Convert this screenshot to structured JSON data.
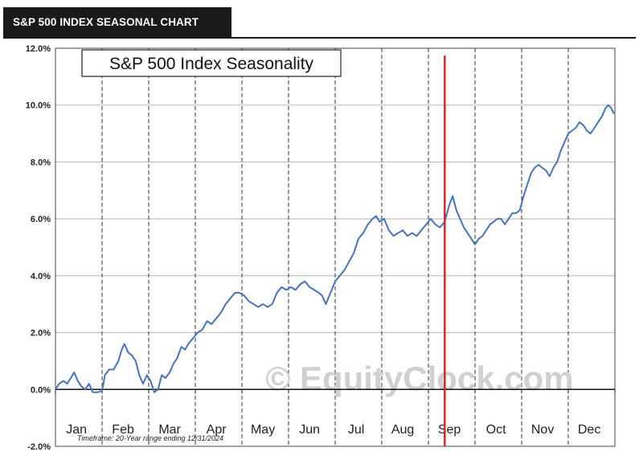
{
  "header": {
    "title": "S&P 500 INDEX SEASONAL CHART"
  },
  "chart_data": {
    "type": "line",
    "title": "S&P 500 Index Seasonality",
    "watermark": "© EquityClock.com",
    "footnote": "Timeframe: 20-Year range ending 12/31/2024",
    "xlabel": "",
    "ylabel": "",
    "x_range": [
      0,
      12
    ],
    "ylim": [
      -2.0,
      12.0
    ],
    "y_ticks": [
      {
        "value": -2.0,
        "label": "-2.0%"
      },
      {
        "value": 0.0,
        "label": "0.0%"
      },
      {
        "value": 2.0,
        "label": "2.0%"
      },
      {
        "value": 4.0,
        "label": "4.0%"
      },
      {
        "value": 6.0,
        "label": "6.0%"
      },
      {
        "value": 8.0,
        "label": "8.0%"
      },
      {
        "value": 10.0,
        "label": "10.0%"
      },
      {
        "value": 12.0,
        "label": "12.0%"
      }
    ],
    "months": [
      "Jan",
      "Feb",
      "Mar",
      "Apr",
      "May",
      "Jun",
      "Jul",
      "Aug",
      "Sep",
      "Oct",
      "Nov",
      "Dec"
    ],
    "grid": true,
    "marker_line": {
      "x": 8.35,
      "color": "#d62728"
    },
    "series": [
      {
        "color": "#4472c4",
        "points": [
          [
            0.0,
            0.0
          ],
          [
            0.08,
            0.2
          ],
          [
            0.17,
            0.3
          ],
          [
            0.25,
            0.2
          ],
          [
            0.33,
            0.4
          ],
          [
            0.4,
            0.6
          ],
          [
            0.48,
            0.3
          ],
          [
            0.56,
            0.1
          ],
          [
            0.64,
            0.0
          ],
          [
            0.72,
            0.2
          ],
          [
            0.8,
            -0.1
          ],
          [
            0.9,
            -0.1
          ],
          [
            1.0,
            -0.05
          ],
          [
            1.06,
            0.5
          ],
          [
            1.15,
            0.7
          ],
          [
            1.25,
            0.7
          ],
          [
            1.35,
            1.0
          ],
          [
            1.42,
            1.4
          ],
          [
            1.48,
            1.6
          ],
          [
            1.56,
            1.3
          ],
          [
            1.64,
            1.2
          ],
          [
            1.72,
            1.0
          ],
          [
            1.8,
            0.5
          ],
          [
            1.88,
            0.2
          ],
          [
            1.96,
            0.5
          ],
          [
            2.04,
            0.3
          ],
          [
            2.12,
            -0.1
          ],
          [
            2.2,
            0.0
          ],
          [
            2.28,
            0.5
          ],
          [
            2.36,
            0.4
          ],
          [
            2.45,
            0.6
          ],
          [
            2.53,
            0.9
          ],
          [
            2.61,
            1.1
          ],
          [
            2.7,
            1.5
          ],
          [
            2.78,
            1.4
          ],
          [
            2.85,
            1.6
          ],
          [
            2.95,
            1.8
          ],
          [
            3.05,
            2.0
          ],
          [
            3.15,
            2.1
          ],
          [
            3.25,
            2.4
          ],
          [
            3.35,
            2.3
          ],
          [
            3.45,
            2.5
          ],
          [
            3.55,
            2.7
          ],
          [
            3.65,
            3.0
          ],
          [
            3.75,
            3.2
          ],
          [
            3.85,
            3.4
          ],
          [
            3.95,
            3.4
          ],
          [
            4.05,
            3.3
          ],
          [
            4.15,
            3.1
          ],
          [
            4.25,
            3.0
          ],
          [
            4.35,
            2.9
          ],
          [
            4.45,
            3.0
          ],
          [
            4.55,
            2.9
          ],
          [
            4.65,
            3.0
          ],
          [
            4.75,
            3.4
          ],
          [
            4.85,
            3.6
          ],
          [
            4.95,
            3.5
          ],
          [
            5.05,
            3.6
          ],
          [
            5.15,
            3.5
          ],
          [
            5.25,
            3.7
          ],
          [
            5.35,
            3.8
          ],
          [
            5.45,
            3.6
          ],
          [
            5.55,
            3.5
          ],
          [
            5.65,
            3.4
          ],
          [
            5.72,
            3.3
          ],
          [
            5.8,
            3.0
          ],
          [
            5.9,
            3.4
          ],
          [
            6.0,
            3.8
          ],
          [
            6.1,
            4.0
          ],
          [
            6.2,
            4.2
          ],
          [
            6.3,
            4.5
          ],
          [
            6.4,
            4.8
          ],
          [
            6.5,
            5.3
          ],
          [
            6.6,
            5.5
          ],
          [
            6.7,
            5.8
          ],
          [
            6.8,
            6.0
          ],
          [
            6.88,
            6.1
          ],
          [
            6.95,
            5.9
          ],
          [
            7.05,
            6.0
          ],
          [
            7.15,
            5.6
          ],
          [
            7.25,
            5.4
          ],
          [
            7.35,
            5.5
          ],
          [
            7.45,
            5.6
          ],
          [
            7.55,
            5.4
          ],
          [
            7.65,
            5.5
          ],
          [
            7.75,
            5.4
          ],
          [
            7.85,
            5.6
          ],
          [
            7.95,
            5.8
          ],
          [
            8.05,
            6.0
          ],
          [
            8.15,
            5.8
          ],
          [
            8.25,
            5.7
          ],
          [
            8.35,
            5.9
          ],
          [
            8.45,
            6.5
          ],
          [
            8.52,
            6.8
          ],
          [
            8.6,
            6.3
          ],
          [
            8.68,
            6.0
          ],
          [
            8.76,
            5.7
          ],
          [
            8.84,
            5.5
          ],
          [
            8.92,
            5.3
          ],
          [
            9.0,
            5.1
          ],
          [
            9.08,
            5.3
          ],
          [
            9.16,
            5.4
          ],
          [
            9.24,
            5.6
          ],
          [
            9.32,
            5.8
          ],
          [
            9.4,
            5.9
          ],
          [
            9.48,
            6.0
          ],
          [
            9.56,
            6.0
          ],
          [
            9.64,
            5.8
          ],
          [
            9.72,
            6.0
          ],
          [
            9.8,
            6.2
          ],
          [
            9.88,
            6.2
          ],
          [
            9.96,
            6.3
          ],
          [
            10.04,
            6.8
          ],
          [
            10.12,
            7.2
          ],
          [
            10.2,
            7.6
          ],
          [
            10.28,
            7.8
          ],
          [
            10.36,
            7.9
          ],
          [
            10.44,
            7.8
          ],
          [
            10.52,
            7.7
          ],
          [
            10.6,
            7.5
          ],
          [
            10.68,
            7.8
          ],
          [
            10.76,
            8.0
          ],
          [
            10.84,
            8.4
          ],
          [
            10.92,
            8.7
          ],
          [
            11.0,
            9.0
          ],
          [
            11.08,
            9.1
          ],
          [
            11.16,
            9.2
          ],
          [
            11.24,
            9.4
          ],
          [
            11.32,
            9.3
          ],
          [
            11.4,
            9.1
          ],
          [
            11.48,
            9.0
          ],
          [
            11.56,
            9.2
          ],
          [
            11.64,
            9.4
          ],
          [
            11.72,
            9.6
          ],
          [
            11.8,
            9.9
          ],
          [
            11.86,
            10.0
          ],
          [
            11.92,
            9.9
          ],
          [
            11.98,
            9.7
          ]
        ]
      }
    ]
  }
}
